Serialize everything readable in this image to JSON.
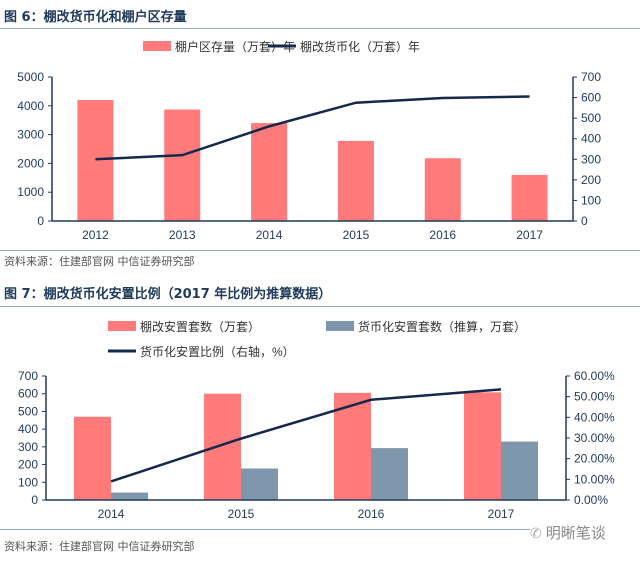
{
  "figure6": {
    "title": "图 6：棚改货币化和棚户区存量",
    "source": "资料来源：住建部官网  中信证券研究部"
  },
  "figure7": {
    "title": "图 7：棚改货币化安置比例（2017 年比例为推算数据）",
    "source": "资料来源：住建部官网  中信证券研究部"
  },
  "watermark": "明晰笔谈",
  "chart_data": [
    {
      "type": "bar+line",
      "categories": [
        "2012",
        "2013",
        "2014",
        "2015",
        "2016",
        "2017"
      ],
      "series": [
        {
          "name": "棚户区存量（万套）年",
          "type": "bar",
          "axis": "left",
          "color": "#ff7b7b",
          "values": [
            4200,
            3870,
            3400,
            2780,
            2180,
            1600
          ]
        },
        {
          "name": "棚改货币化（万套）年",
          "type": "line",
          "axis": "right",
          "color": "#15294a",
          "values": [
            300,
            320,
            460,
            575,
            598,
            605
          ]
        }
      ],
      "ylim_left": [
        0,
        5000
      ],
      "yticks_left": [
        "0",
        "1000",
        "2000",
        "3000",
        "4000",
        "5000"
      ],
      "ylim_right": [
        0,
        700
      ],
      "yticks_right": [
        "0",
        "100",
        "200",
        "300",
        "400",
        "500",
        "600",
        "700"
      ],
      "legend": "top",
      "grid": false
    },
    {
      "type": "bar+line",
      "categories": [
        "2014",
        "2015",
        "2016",
        "2017"
      ],
      "series": [
        {
          "name": "棚改安置套数（万套）",
          "type": "bar",
          "axis": "left",
          "color": "#ff7b7b",
          "values": [
            470,
            600,
            605,
            608
          ]
        },
        {
          "name": "货币化安置套数（推算，万套）",
          "type": "bar",
          "axis": "left",
          "color": "#7f97ad",
          "values": [
            42,
            178,
            293,
            330
          ]
        },
        {
          "name": "货币化安置比例（右轴，%）",
          "type": "line",
          "axis": "right",
          "color": "#15294a",
          "values": [
            9.0,
            29.7,
            48.5,
            53.5
          ]
        }
      ],
      "ylim_left": [
        0,
        700
      ],
      "yticks_left": [
        "0",
        "100",
        "200",
        "300",
        "400",
        "500",
        "600",
        "700"
      ],
      "ylim_right": [
        0,
        60
      ],
      "yticks_right": [
        "0.00%",
        "10.00%",
        "20.00%",
        "30.00%",
        "40.00%",
        "50.00%",
        "60.00%"
      ],
      "legend": "top",
      "grid": false
    }
  ]
}
